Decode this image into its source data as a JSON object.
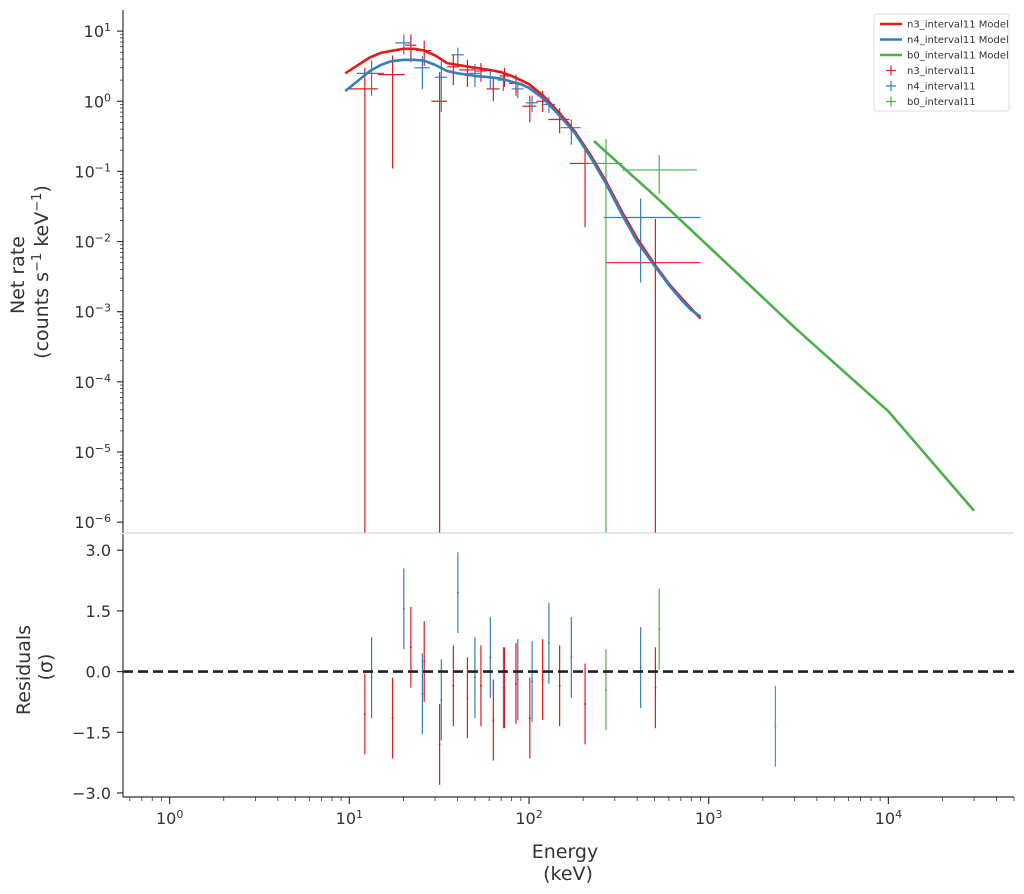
{
  "chart_data": [
    {
      "type": "line",
      "panel": "spectrum",
      "ylabel_line1": "Net rate",
      "ylabel_line2": "(counts s",
      "ylabel_sup1": "−1",
      "ylabel_mid": " keV",
      "ylabel_sup2": "−1",
      "ylabel_end": ")",
      "xscale": "log",
      "yscale": "log",
      "xlim": [
        0.55,
        50000
      ],
      "ylim": [
        7e-07,
        20
      ],
      "y_ticks": [
        {
          "value": 1e-06,
          "base": "10",
          "exp": "−6"
        },
        {
          "value": 1e-05,
          "base": "10",
          "exp": "−5"
        },
        {
          "value": 0.0001,
          "base": "10",
          "exp": "−4"
        },
        {
          "value": 0.001,
          "base": "10",
          "exp": "−3"
        },
        {
          "value": 0.01,
          "base": "10",
          "exp": "−2"
        },
        {
          "value": 0.1,
          "base": "10",
          "exp": "−1"
        },
        {
          "value": 1,
          "base": "10",
          "exp": "0"
        },
        {
          "value": 10,
          "base": "10",
          "exp": "1"
        }
      ],
      "legend_position": "top-right",
      "models": [
        {
          "name": "n3_interval11 Model",
          "color": "#e41a1c",
          "x": [
            9.5,
            11,
            13,
            15,
            17,
            20,
            23,
            26,
            30,
            35,
            40,
            50,
            60,
            70,
            80,
            90,
            100,
            120,
            150,
            180,
            220,
            270,
            330,
            400,
            500,
            600,
            700,
            800,
            900
          ],
          "y": [
            2.5,
            3.2,
            4.2,
            4.9,
            5.2,
            5.6,
            5.6,
            5.3,
            4.5,
            3.5,
            3.3,
            3.0,
            2.8,
            2.6,
            2.3,
            2.0,
            1.75,
            1.2,
            0.65,
            0.37,
            0.17,
            0.07,
            0.026,
            0.011,
            0.0047,
            0.0025,
            0.0016,
            0.0011,
            0.0008
          ]
        },
        {
          "name": "n4_interval11 Model",
          "color": "#377eb8",
          "x": [
            9.5,
            11,
            13,
            15,
            17,
            20,
            23,
            26,
            30,
            35,
            40,
            50,
            60,
            70,
            80,
            90,
            100,
            120,
            150,
            180,
            220,
            270,
            330,
            400,
            500,
            600,
            700,
            800,
            900
          ],
          "y": [
            1.4,
            1.9,
            2.7,
            3.3,
            3.7,
            3.9,
            3.9,
            3.8,
            3.3,
            2.7,
            2.5,
            2.3,
            2.2,
            2.1,
            1.9,
            1.75,
            1.55,
            1.1,
            0.6,
            0.35,
            0.16,
            0.065,
            0.024,
            0.01,
            0.0045,
            0.0024,
            0.0015,
            0.00105,
            0.00085
          ]
        },
        {
          "name": "b0_interval11 Model",
          "color": "#4daf4a",
          "x": [
            230,
            500,
            1000,
            3000,
            10000,
            30000
          ],
          "y": [
            0.27,
            0.045,
            0.0085,
            0.0006,
            3.8e-05,
            1.45e-06
          ]
        }
      ],
      "data_series": [
        {
          "name": "n3_interval11",
          "color": "#e41a1c",
          "points": [
            {
              "x": 12.2,
              "xlo": 10.0,
              "xhi": 14.4,
              "y": 1.5,
              "ylo": 1e-07,
              "yhi": 3.0
            },
            {
              "x": 17.4,
              "xlo": 14.4,
              "xhi": 20.4,
              "y": 2.4,
              "ylo": 0.11,
              "yhi": 4.5
            },
            {
              "x": 22.0,
              "xlo": 20.4,
              "xhi": 23.6,
              "y": 6.3,
              "ylo": 3.6,
              "yhi": 9.0
            },
            {
              "x": 26.1,
              "xlo": 23.6,
              "xhi": 28.6,
              "y": 5.3,
              "ylo": 3.2,
              "yhi": 7.3
            },
            {
              "x": 31.8,
              "xlo": 28.6,
              "xhi": 35.0,
              "y": 1.0,
              "ylo": 1e-07,
              "yhi": 2.6
            },
            {
              "x": 37.9,
              "xlo": 35.0,
              "xhi": 40.8,
              "y": 3.1,
              "ylo": 1.7,
              "yhi": 4.6
            },
            {
              "x": 45.4,
              "xlo": 40.8,
              "xhi": 50.0,
              "y": 2.8,
              "ylo": 1.6,
              "yhi": 3.9
            },
            {
              "x": 54.0,
              "xlo": 50.0,
              "xhi": 58.0,
              "y": 2.7,
              "ylo": 1.9,
              "yhi": 3.5
            },
            {
              "x": 63.3,
              "xlo": 58.0,
              "xhi": 68.6,
              "y": 1.5,
              "ylo": 1.0,
              "yhi": 2.1
            },
            {
              "x": 73.0,
              "xlo": 68.6,
              "xhi": 77.4,
              "y": 2.3,
              "ylo": 1.6,
              "yhi": 3.0
            },
            {
              "x": 84.6,
              "xlo": 77.4,
              "xhi": 91.8,
              "y": 1.8,
              "ylo": 1.2,
              "yhi": 2.4
            },
            {
              "x": 101,
              "xlo": 91.8,
              "xhi": 110,
              "y": 0.85,
              "ylo": 0.5,
              "yhi": 1.2
            },
            {
              "x": 119,
              "xlo": 110,
              "xhi": 128,
              "y": 1.0,
              "ylo": 0.7,
              "yhi": 1.4
            },
            {
              "x": 148,
              "xlo": 128,
              "xhi": 168,
              "y": 0.55,
              "ylo": 0.35,
              "yhi": 0.8
            },
            {
              "x": 205,
              "xlo": 168,
              "xhi": 245,
              "y": 0.13,
              "ylo": 0.016,
              "yhi": 0.24
            },
            {
              "x": 505,
              "xlo": 270,
              "xhi": 900,
              "y": 0.005,
              "ylo": 1e-07,
              "yhi": 0.021
            }
          ]
        },
        {
          "name": "n4_interval11",
          "color": "#377eb8",
          "points": [
            {
              "x": 13.3,
              "xlo": 11.0,
              "xhi": 15.6,
              "y": 2.5,
              "ylo": 1.2,
              "yhi": 3.8
            },
            {
              "x": 20.1,
              "xlo": 18.0,
              "xhi": 22.2,
              "y": 6.8,
              "ylo": 4.6,
              "yhi": 9.0
            },
            {
              "x": 25.5,
              "xlo": 23.0,
              "xhi": 28.0,
              "y": 3.0,
              "ylo": 1.5,
              "yhi": 4.4
            },
            {
              "x": 32.5,
              "xlo": 30.0,
              "xhi": 35.0,
              "y": 2.2,
              "ylo": 0.7,
              "yhi": 3.7
            },
            {
              "x": 40.2,
              "xlo": 37.0,
              "xhi": 43.4,
              "y": 4.6,
              "ylo": 3.4,
              "yhi": 5.8
            },
            {
              "x": 50.0,
              "xlo": 46.0,
              "xhi": 54.0,
              "y": 2.5,
              "ylo": 1.6,
              "yhi": 3.4
            },
            {
              "x": 60.9,
              "xlo": 56.0,
              "xhi": 65.8,
              "y": 2.2,
              "ylo": 1.5,
              "yhi": 2.9
            },
            {
              "x": 72.0,
              "xlo": 67.0,
              "xhi": 77.0,
              "y": 2.0,
              "ylo": 1.4,
              "yhi": 2.6
            },
            {
              "x": 86.6,
              "xlo": 80.0,
              "xhi": 93.2,
              "y": 1.5,
              "ylo": 1.1,
              "yhi": 1.9
            },
            {
              "x": 104,
              "xlo": 96.0,
              "xhi": 112,
              "y": 0.95,
              "ylo": 0.7,
              "yhi": 1.2
            },
            {
              "x": 129,
              "xlo": 118,
              "xhi": 140,
              "y": 0.9,
              "ylo": 0.68,
              "yhi": 1.15
            },
            {
              "x": 172,
              "xlo": 150,
              "xhi": 194,
              "y": 0.42,
              "ylo": 0.24,
              "yhi": 0.55
            },
            {
              "x": 418,
              "xlo": 260,
              "xhi": 900,
              "y": 0.022,
              "ylo": 0.0026,
              "yhi": 0.041
            }
          ]
        },
        {
          "name": "b0_interval11",
          "color": "#4daf4a",
          "points": [
            {
              "x": 268,
              "xlo": 215,
              "xhi": 330,
              "y": 0.13,
              "ylo": 1e-07,
              "yhi": 0.29
            },
            {
              "x": 530,
              "xlo": 330,
              "xhi": 860,
              "y": 0.105,
              "ylo": 0.048,
              "yhi": 0.17
            }
          ]
        }
      ]
    },
    {
      "type": "scatter",
      "panel": "residuals",
      "xlabel_line1": "Energy",
      "xlabel_line2": "(keV)",
      "ylabel_line1": "Residuals",
      "ylabel_line2": "(σ)",
      "xscale": "log",
      "xlim": [
        0.55,
        50000
      ],
      "ylim": [
        -3.1,
        3.4
      ],
      "x_ticks": [
        {
          "value": 1,
          "base": "10",
          "exp": "0"
        },
        {
          "value": 10,
          "base": "10",
          "exp": "1"
        },
        {
          "value": 100,
          "base": "10",
          "exp": "2"
        },
        {
          "value": 1000,
          "base": "10",
          "exp": "3"
        },
        {
          "value": 10000,
          "base": "10",
          "exp": "4"
        }
      ],
      "y_ticks": [
        "3.0",
        "1.5",
        "0.0",
        "−1.5",
        "−3.0"
      ],
      "y_tick_values": [
        3.0,
        1.5,
        0.0,
        -1.5,
        -3.0
      ],
      "zero_line": 0,
      "series": [
        {
          "name": "n3_interval11",
          "color": "#e41a1c",
          "points": [
            {
              "x": 12.2,
              "y": -1.05,
              "ylo": -2.05,
              "yhi": -0.05
            },
            {
              "x": 17.4,
              "y": -1.15,
              "ylo": -2.15,
              "yhi": -0.15
            },
            {
              "x": 22.0,
              "y": 0.6,
              "ylo": -0.4,
              "yhi": 1.6
            },
            {
              "x": 26.1,
              "y": 0.25,
              "ylo": -0.75,
              "yhi": 1.25
            },
            {
              "x": 31.8,
              "y": -1.8,
              "ylo": -2.8,
              "yhi": -0.8
            },
            {
              "x": 37.9,
              "y": -0.35,
              "ylo": -1.35,
              "yhi": 0.65
            },
            {
              "x": 45.4,
              "y": -0.65,
              "ylo": -1.65,
              "yhi": 0.35
            },
            {
              "x": 54.0,
              "y": -0.35,
              "ylo": -1.35,
              "yhi": 0.65
            },
            {
              "x": 63.3,
              "y": -1.2,
              "ylo": -2.2,
              "yhi": -0.2
            },
            {
              "x": 73.0,
              "y": -0.4,
              "ylo": -1.4,
              "yhi": 0.6
            },
            {
              "x": 84.6,
              "y": -0.3,
              "ylo": -1.3,
              "yhi": 0.7
            },
            {
              "x": 101,
              "y": -1.15,
              "ylo": -2.15,
              "yhi": -0.15
            },
            {
              "x": 119,
              "y": -0.2,
              "ylo": -1.2,
              "yhi": 0.8
            },
            {
              "x": 148,
              "y": -0.35,
              "ylo": -1.35,
              "yhi": 0.65
            },
            {
              "x": 205,
              "y": -0.8,
              "ylo": -1.8,
              "yhi": 0.2
            },
            {
              "x": 505,
              "y": -0.4,
              "ylo": -1.4,
              "yhi": 0.6
            }
          ]
        },
        {
          "name": "n4_interval11",
          "color": "#377eb8",
          "points": [
            {
              "x": 13.3,
              "y": -0.15,
              "ylo": -1.15,
              "yhi": 0.85
            },
            {
              "x": 20.1,
              "y": 1.55,
              "ylo": 0.55,
              "yhi": 2.55
            },
            {
              "x": 25.5,
              "y": -0.55,
              "ylo": -1.55,
              "yhi": 0.45
            },
            {
              "x": 32.5,
              "y": -0.7,
              "ylo": -1.7,
              "yhi": 0.3
            },
            {
              "x": 40.2,
              "y": 1.95,
              "ylo": 0.95,
              "yhi": 2.95
            },
            {
              "x": 50.0,
              "y": -0.15,
              "ylo": -1.15,
              "yhi": 0.85
            },
            {
              "x": 60.9,
              "y": 0.35,
              "ylo": -0.65,
              "yhi": 1.35
            },
            {
              "x": 72.0,
              "y": -0.4,
              "ylo": -1.4,
              "yhi": 0.6
            },
            {
              "x": 86.6,
              "y": -0.2,
              "ylo": -1.2,
              "yhi": 0.8
            },
            {
              "x": 104,
              "y": -0.25,
              "ylo": -1.25,
              "yhi": 0.75
            },
            {
              "x": 129,
              "y": 0.7,
              "ylo": -0.3,
              "yhi": 1.7
            },
            {
              "x": 172,
              "y": 0.35,
              "ylo": -0.65,
              "yhi": 1.35
            },
            {
              "x": 418,
              "y": 0.1,
              "ylo": -0.9,
              "yhi": 1.1
            }
          ]
        },
        {
          "name": "b0_interval11",
          "color": "#4daf4a",
          "points": [
            {
              "x": 268,
              "y": -0.45,
              "ylo": -1.45,
              "yhi": 0.55
            },
            {
              "x": 530,
              "y": 1.05,
              "ylo": 0.05,
              "yhi": 2.05
            },
            {
              "x": 2350,
              "y": -1.35,
              "ylo": -2.35,
              "yhi": -0.35
            }
          ]
        }
      ]
    }
  ]
}
